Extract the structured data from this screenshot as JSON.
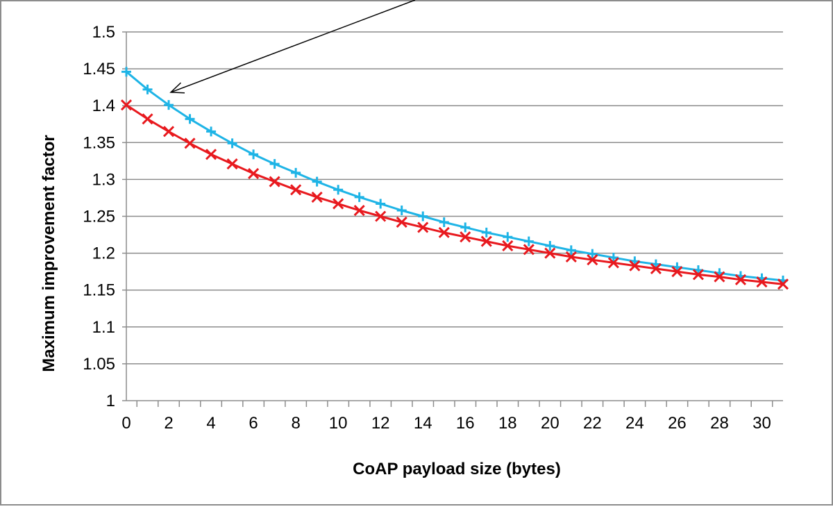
{
  "chart_data": {
    "type": "line",
    "title": "",
    "xlabel": "CoAP payload size (bytes)",
    "ylabel": "Maximum improvement factor",
    "xlim": [
      0,
      31
    ],
    "ylim": [
      1,
      1.5
    ],
    "x_ticks": [
      "0",
      "2",
      "4",
      "6",
      "8",
      "10",
      "12",
      "14",
      "16",
      "18",
      "20",
      "22",
      "24",
      "26",
      "28",
      "30"
    ],
    "y_ticks": [
      "1",
      "1.05",
      "1.1",
      "1.15",
      "1.2",
      "1.25",
      "1.3",
      "1.35",
      "1.4",
      "1.45",
      "1.5"
    ],
    "grid": true,
    "legend": "none",
    "x": [
      0,
      1,
      2,
      3,
      4,
      5,
      6,
      7,
      8,
      9,
      10,
      11,
      12,
      13,
      14,
      15,
      16,
      17,
      18,
      19,
      20,
      21,
      22,
      23,
      24,
      25,
      26,
      27,
      28,
      29,
      30,
      31
    ],
    "series": [
      {
        "color": "#1eb4e6",
        "marker": "plus",
        "values": [
          1.446,
          1.422,
          1.401,
          1.382,
          1.365,
          1.349,
          1.334,
          1.321,
          1.309,
          1.297,
          1.286,
          1.276,
          1.267,
          1.258,
          1.25,
          1.242,
          1.235,
          1.228,
          1.222,
          1.216,
          1.21,
          1.204,
          1.199,
          1.194,
          1.189,
          1.185,
          1.181,
          1.177,
          1.173,
          1.169,
          1.166,
          1.163
        ]
      },
      {
        "color": "#e8191e",
        "marker": "x",
        "values": [
          1.401,
          1.382,
          1.365,
          1.349,
          1.334,
          1.321,
          1.308,
          1.297,
          1.286,
          1.276,
          1.267,
          1.258,
          1.25,
          1.242,
          1.235,
          1.228,
          1.222,
          1.216,
          1.21,
          1.205,
          1.2,
          1.195,
          1.191,
          1.187,
          1.183,
          1.179,
          1.175,
          1.171,
          1.168,
          1.164,
          1.161,
          1.158
        ]
      }
    ],
    "annotations": [
      {
        "type": "arrow",
        "color": "#000000",
        "points_to": {
          "x": 2,
          "y": 1.42
        }
      }
    ]
  }
}
